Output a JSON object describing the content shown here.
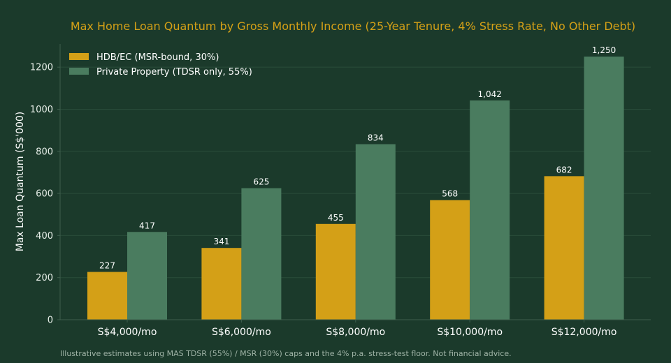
{
  "chart_data": {
    "type": "bar",
    "title": "Max Home Loan Quantum by Gross Monthly Income (25-Year Tenure, 4% Stress Rate, No Other Debt)",
    "xlabel": "",
    "ylabel": "Max Loan Quantum (S$'000)",
    "categories": [
      "S$4,000/mo",
      "S$6,000/mo",
      "S$8,000/mo",
      "S$10,000/mo",
      "S$12,000/mo"
    ],
    "series": [
      {
        "name": "HDB/EC (MSR-bound, 30%)",
        "values": [
          227,
          341,
          455,
          568,
          682
        ],
        "labels": [
          "227",
          "341",
          "455",
          "568",
          "682"
        ],
        "color": "#d4a017"
      },
      {
        "name": "Private Property (TDSR only, 55%)",
        "values": [
          417,
          625,
          834,
          1042,
          1250
        ],
        "labels": [
          "417",
          "625",
          "834",
          "1,042",
          "1,250"
        ],
        "color": "#4a7c5f"
      }
    ],
    "ylim": [
      0,
      1310
    ],
    "yticks": [
      0,
      200,
      400,
      600,
      800,
      1000,
      1200
    ],
    "grid": true,
    "legend": "top-left"
  },
  "footnote": "Illustrative estimates using MAS TDSR (55%) / MSR (30%) caps and the 4% p.a. stress-test floor. Not financial advice.",
  "colors": {
    "background": "#1b3a2b",
    "title": "#d4a017",
    "grid": "#2a4d3b",
    "axis": "#3f5f4e",
    "footnote": "#9fb3a6"
  }
}
